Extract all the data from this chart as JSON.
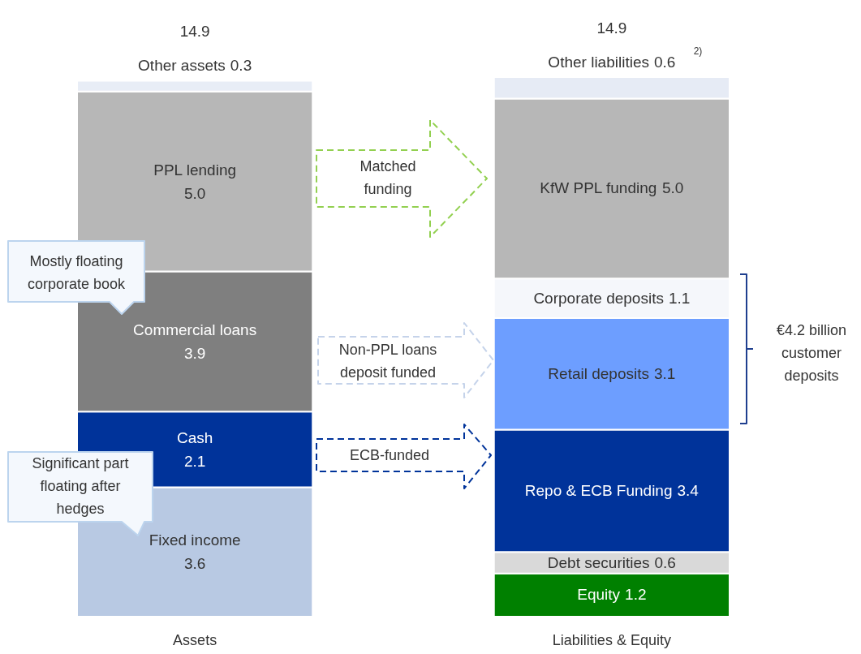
{
  "chart_data": {
    "type": "bar",
    "stacked": true,
    "categories": [
      "Assets",
      "Liabilities & Equity"
    ],
    "series": [
      {
        "name": "Fixed income",
        "color": "#b8c9e3",
        "values": [
          3.6,
          null
        ],
        "value_labels": [
          "3.6",
          null
        ]
      },
      {
        "name": "Cash",
        "color": "#00339a",
        "values": [
          2.1,
          null
        ],
        "value_labels": [
          "2.1",
          null
        ]
      },
      {
        "name": "Commercial loans",
        "color": "#7f7f7f",
        "values": [
          3.9,
          null
        ],
        "value_labels": [
          "3.9",
          null
        ]
      },
      {
        "name": "PPL lending",
        "color": "#b7b7b7",
        "values": [
          5.0,
          null
        ],
        "value_labels": [
          "5.0",
          null
        ]
      },
      {
        "name": "Other assets",
        "color": "#e8edf6",
        "values": [
          0.3,
          null
        ],
        "value_labels": [
          "0.3",
          null
        ]
      },
      {
        "name": "Equity",
        "color": "#008000",
        "values": [
          null,
          1.2
        ],
        "value_labels": [
          null,
          "1.2"
        ]
      },
      {
        "name": "Debt securities",
        "color": "#d9d9d9",
        "values": [
          null,
          0.6
        ],
        "value_labels": [
          null,
          "0.6"
        ]
      },
      {
        "name": "Repo & ECB Funding",
        "color": "#00339a",
        "values": [
          null,
          3.4
        ],
        "value_labels": [
          null,
          "3.4"
        ]
      },
      {
        "name": "Retail deposits",
        "color": "#6d9eff",
        "values": [
          null,
          3.1
        ],
        "value_labels": [
          null,
          "3.1"
        ]
      },
      {
        "name": "Corporate deposits",
        "color": "#f5f7fb",
        "values": [
          null,
          1.1
        ],
        "value_labels": [
          null,
          "1.1"
        ]
      },
      {
        "name": "KfW PPL funding",
        "color": "#b7b7b7",
        "values": [
          null,
          5.0
        ],
        "value_labels": [
          null,
          "5.0"
        ]
      },
      {
        "name": "Other liabilities",
        "color": "#e6ebf5",
        "values": [
          null,
          0.6
        ],
        "value_labels": [
          null,
          "0.6"
        ]
      }
    ],
    "data_labels": false,
    "totals": [
      "14.9",
      "14.9"
    ],
    "ylim": [
      0,
      15
    ],
    "tick_labels": "x",
    "legend": false,
    "grid": false,
    "annotations": [
      "Mostly floating corporate book",
      "Significant part floating after hedges",
      "Matched funding",
      "Non-PPL loans deposit funded",
      "ECB-funded",
      "€4.2 billion customer deposits",
      "2)"
    ]
  }
}
